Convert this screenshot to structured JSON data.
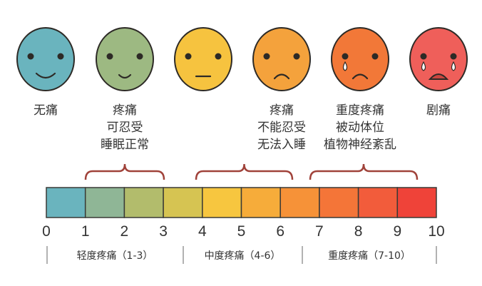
{
  "faces": [
    {
      "mood": "smile",
      "color": "#6ab4be",
      "tears": 0,
      "label": [
        "无痛"
      ]
    },
    {
      "mood": "smile-small",
      "color": "#9db982",
      "tears": 0,
      "label": [
        "疼痛",
        "可忍受",
        "睡眠正常"
      ]
    },
    {
      "mood": "neutral",
      "color": "#f6c33f",
      "tears": 0,
      "label": []
    },
    {
      "mood": "frown",
      "color": "#f4a23c",
      "tears": 0,
      "label": [
        "疼痛",
        "不能忍受",
        "无法入睡"
      ]
    },
    {
      "mood": "frown",
      "color": "#f27838",
      "tears": 1,
      "label": [
        "重度疼痛",
        "被动体位",
        "植物神经紊乱"
      ]
    },
    {
      "mood": "cry",
      "color": "#ef5f5a",
      "tears": 2,
      "label": [
        "剧痛"
      ]
    }
  ],
  "scale": {
    "ticks": [
      "0",
      "1",
      "2",
      "3",
      "4",
      "5",
      "6",
      "7",
      "8",
      "9",
      "10"
    ],
    "cell_colors": [
      "#6ab4be",
      "#8fb696",
      "#b2bc6c",
      "#d6c452",
      "#f7c63f",
      "#f6ac3a",
      "#f69238",
      "#f47538",
      "#f25c3b",
      "#ef4339"
    ]
  },
  "groups": [
    {
      "label": "轻度疼痛（1-3）"
    },
    {
      "label": "中度疼痛（4-6）"
    },
    {
      "label": "重度疼痛（7-10）"
    }
  ],
  "accent_colors": {
    "brace": "#a0423a",
    "outline": "#2d2a26"
  }
}
